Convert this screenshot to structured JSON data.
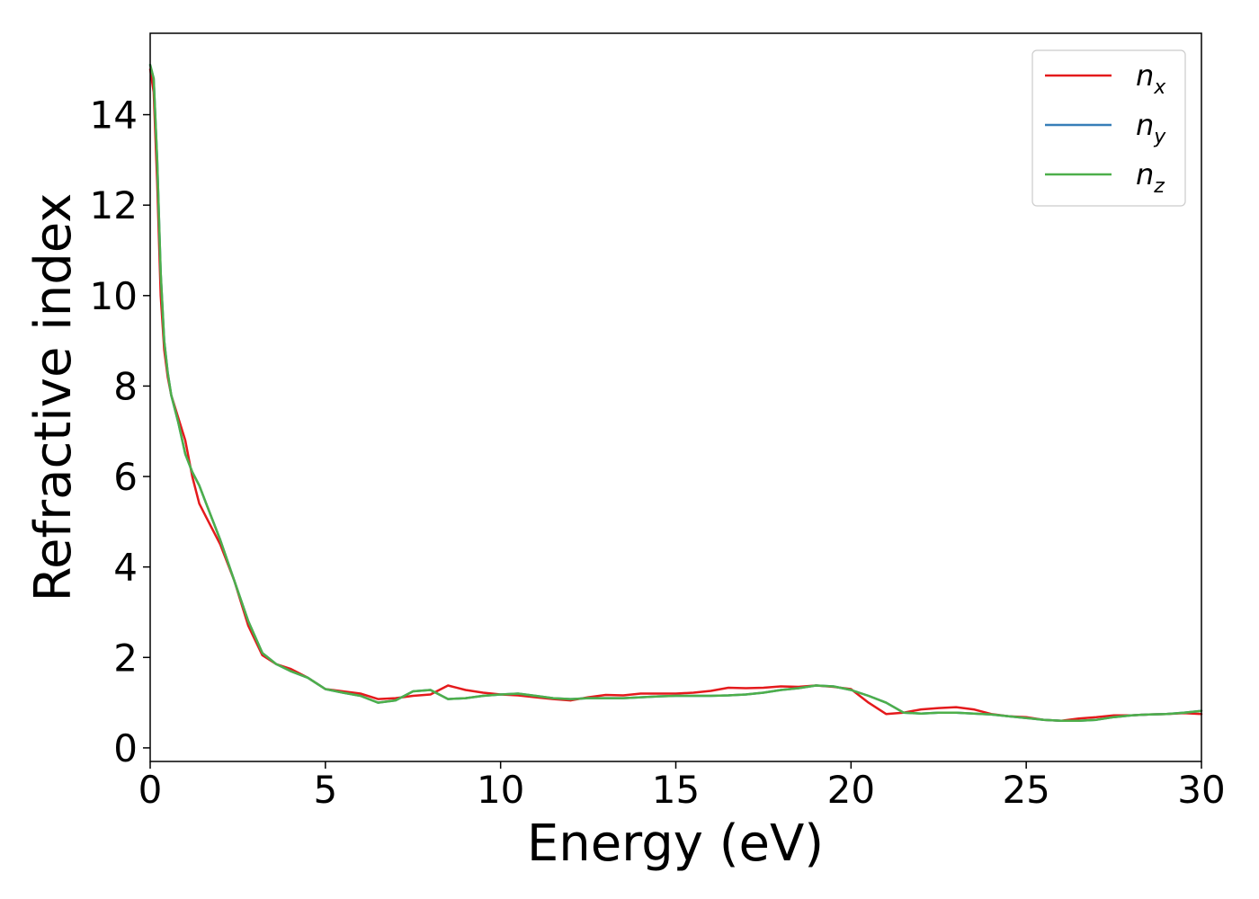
{
  "chart_data": {
    "type": "line",
    "title": "",
    "xlabel": "Energy (eV)",
    "ylabel": "Refractive index",
    "xlim": [
      0,
      30
    ],
    "ylim": [
      -0.3,
      15.8
    ],
    "xticks": [
      0,
      5,
      10,
      15,
      20,
      25,
      30
    ],
    "yticks": [
      0,
      2,
      4,
      6,
      8,
      10,
      12,
      14
    ],
    "grid": false,
    "legend_position": "top-right",
    "series": [
      {
        "name": "n",
        "sub": "x",
        "color": "#e41a1c",
        "x": [
          0,
          0.1,
          0.2,
          0.3,
          0.4,
          0.5,
          0.6,
          0.8,
          1.0,
          1.2,
          1.4,
          1.6,
          2.0,
          2.4,
          2.8,
          3.2,
          3.6,
          4.0,
          4.5,
          5.0,
          5.5,
          6.0,
          6.5,
          7.0,
          7.5,
          8.0,
          8.5,
          9.0,
          9.5,
          10.0,
          10.5,
          11.0,
          11.5,
          12.0,
          12.5,
          13.0,
          13.5,
          14.0,
          14.5,
          15.0,
          15.5,
          16.0,
          16.5,
          17.0,
          17.5,
          18.0,
          18.5,
          19.0,
          19.5,
          20.0,
          20.5,
          21.0,
          21.5,
          22.0,
          22.5,
          23.0,
          23.5,
          24.0,
          24.5,
          25.0,
          25.5,
          26.0,
          26.5,
          27.0,
          27.5,
          28.0,
          28.5,
          29.0,
          29.5,
          30.0
        ],
        "y": [
          15.0,
          14.5,
          12.5,
          10.0,
          8.8,
          8.2,
          7.8,
          7.3,
          6.8,
          6.0,
          5.4,
          5.1,
          4.5,
          3.7,
          2.7,
          2.05,
          1.85,
          1.75,
          1.55,
          1.3,
          1.25,
          1.2,
          1.08,
          1.1,
          1.15,
          1.18,
          1.38,
          1.28,
          1.22,
          1.18,
          1.16,
          1.12,
          1.08,
          1.05,
          1.12,
          1.17,
          1.16,
          1.2,
          1.2,
          1.2,
          1.22,
          1.26,
          1.33,
          1.32,
          1.33,
          1.36,
          1.35,
          1.38,
          1.35,
          1.3,
          1.0,
          0.75,
          0.78,
          0.85,
          0.88,
          0.9,
          0.85,
          0.75,
          0.7,
          0.68,
          0.62,
          0.6,
          0.65,
          0.68,
          0.72,
          0.72,
          0.74,
          0.75,
          0.77,
          0.75
        ]
      },
      {
        "name": "n",
        "sub": "y",
        "color": "#377eb8",
        "x": [
          0,
          0.1,
          0.2,
          0.3,
          0.4,
          0.5,
          0.6,
          0.8,
          1.0,
          1.2,
          1.4,
          1.6,
          2.0,
          2.4,
          2.8,
          3.2,
          3.6,
          4.0,
          4.5,
          5.0,
          5.5,
          6.0,
          6.5,
          7.0,
          7.5,
          8.0,
          8.5,
          9.0,
          9.5,
          10.0,
          10.5,
          11.0,
          11.5,
          12.0,
          12.5,
          13.0,
          13.5,
          14.0,
          14.5,
          15.0,
          15.5,
          16.0,
          16.5,
          17.0,
          17.5,
          18.0,
          18.5,
          19.0,
          19.5,
          20.0,
          20.5,
          21.0,
          21.5,
          22.0,
          22.5,
          23.0,
          23.5,
          24.0,
          24.5,
          25.0,
          25.5,
          26.0,
          26.5,
          27.0,
          27.5,
          28.0,
          28.5,
          29.0,
          29.5,
          30.0
        ],
        "y": [
          15.1,
          14.8,
          13.0,
          10.5,
          9.0,
          8.3,
          7.8,
          7.2,
          6.5,
          6.1,
          5.8,
          5.4,
          4.6,
          3.7,
          2.8,
          2.1,
          1.85,
          1.7,
          1.55,
          1.3,
          1.22,
          1.15,
          1.0,
          1.05,
          1.25,
          1.28,
          1.08,
          1.1,
          1.15,
          1.18,
          1.2,
          1.15,
          1.1,
          1.08,
          1.1,
          1.1,
          1.1,
          1.12,
          1.14,
          1.15,
          1.15,
          1.15,
          1.16,
          1.18,
          1.22,
          1.28,
          1.32,
          1.38,
          1.36,
          1.28,
          1.15,
          1.0,
          0.78,
          0.76,
          0.78,
          0.78,
          0.76,
          0.74,
          0.7,
          0.66,
          0.62,
          0.6,
          0.6,
          0.62,
          0.68,
          0.72,
          0.74,
          0.75,
          0.78,
          0.82
        ]
      },
      {
        "name": "n",
        "sub": "z",
        "color": "#4daf4a",
        "x": [
          0,
          0.1,
          0.2,
          0.3,
          0.4,
          0.5,
          0.6,
          0.8,
          1.0,
          1.2,
          1.4,
          1.6,
          2.0,
          2.4,
          2.8,
          3.2,
          3.6,
          4.0,
          4.5,
          5.0,
          5.5,
          6.0,
          6.5,
          7.0,
          7.5,
          8.0,
          8.5,
          9.0,
          9.5,
          10.0,
          10.5,
          11.0,
          11.5,
          12.0,
          12.5,
          13.0,
          13.5,
          14.0,
          14.5,
          15.0,
          15.5,
          16.0,
          16.5,
          17.0,
          17.5,
          18.0,
          18.5,
          19.0,
          19.5,
          20.0,
          20.5,
          21.0,
          21.5,
          22.0,
          22.5,
          23.0,
          23.5,
          24.0,
          24.5,
          25.0,
          25.5,
          26.0,
          26.5,
          27.0,
          27.5,
          28.0,
          28.5,
          29.0,
          29.5,
          30.0
        ],
        "y": [
          15.1,
          14.8,
          13.0,
          10.5,
          9.0,
          8.3,
          7.8,
          7.2,
          6.5,
          6.1,
          5.8,
          5.4,
          4.6,
          3.7,
          2.8,
          2.1,
          1.85,
          1.7,
          1.55,
          1.3,
          1.22,
          1.15,
          1.0,
          1.05,
          1.25,
          1.28,
          1.08,
          1.1,
          1.15,
          1.18,
          1.2,
          1.15,
          1.1,
          1.08,
          1.1,
          1.1,
          1.1,
          1.12,
          1.14,
          1.15,
          1.15,
          1.15,
          1.16,
          1.18,
          1.22,
          1.28,
          1.32,
          1.38,
          1.36,
          1.28,
          1.15,
          1.0,
          0.78,
          0.76,
          0.78,
          0.78,
          0.76,
          0.74,
          0.7,
          0.66,
          0.62,
          0.6,
          0.6,
          0.62,
          0.68,
          0.72,
          0.74,
          0.75,
          0.78,
          0.82
        ]
      }
    ]
  }
}
